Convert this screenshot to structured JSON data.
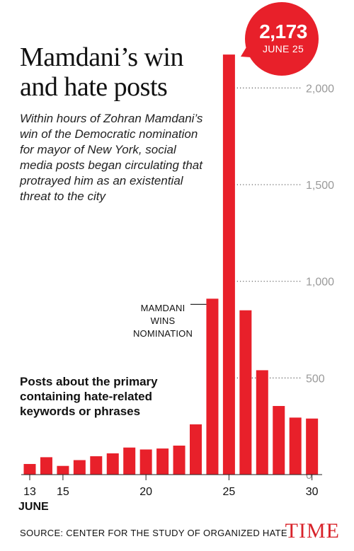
{
  "header": {
    "title": "Mamdani’s win and hate posts",
    "subtitle": "Within hours of Zohran Mamdani’s win of the Democratic nomination for mayor of New York, social media posts began circulating that protrayed him as an existential threat to the city"
  },
  "series_note": "Posts about the primary containing hate-related keywords or phrases",
  "annotation": "MAMDANI WINS NOMINATION",
  "callout": {
    "value": "2,173",
    "date": "JUNE 25"
  },
  "month_label": "JUNE",
  "source": "SOURCE: CENTER FOR THE STUDY OF ORGANIZED HATE",
  "brand": "TIME",
  "colors": {
    "bar": "#e8202a",
    "callout": "#e8202a",
    "axis_text": "#9a9a9a",
    "brand": "#d8232a"
  },
  "chart_data": {
    "type": "bar",
    "x": [
      13,
      14,
      15,
      16,
      17,
      18,
      19,
      20,
      21,
      22,
      23,
      24,
      25,
      26,
      27,
      28,
      29,
      30
    ],
    "values": [
      55,
      90,
      45,
      75,
      95,
      110,
      140,
      130,
      135,
      150,
      260,
      910,
      2173,
      850,
      540,
      355,
      295,
      290
    ],
    "x_ticks": [
      "13",
      "15",
      "20",
      "25",
      "30"
    ],
    "y_ticks": [
      "0",
      "500",
      "1,000",
      "1,500",
      "2,000"
    ],
    "ylim": [
      0,
      2200
    ],
    "grid": "dotted gridlines to the right of the bars",
    "annotated_x": 24,
    "highlight_x": 25
  }
}
